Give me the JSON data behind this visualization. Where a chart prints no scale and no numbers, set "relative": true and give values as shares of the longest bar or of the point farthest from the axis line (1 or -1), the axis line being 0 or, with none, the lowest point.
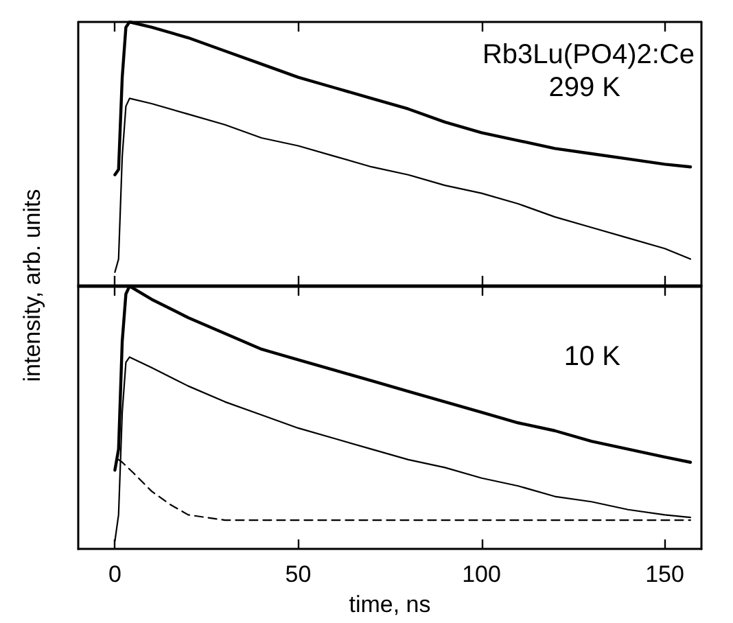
{
  "chart_data": [
    {
      "type": "line",
      "relative": true,
      "xlim": [
        -10,
        160
      ],
      "xticks": [
        0,
        50,
        100,
        150
      ],
      "tick_labels": false,
      "grid": false,
      "marker": "none",
      "annotations": [
        "Rb3Lu(PO4)2:Ce",
        "299 K"
      ],
      "x": [
        0,
        1,
        2,
        3,
        4,
        10,
        20,
        30,
        40,
        50,
        60,
        70,
        80,
        90,
        100,
        110,
        120,
        130,
        140,
        150,
        157
      ],
      "series": [
        {
          "color": "#000000",
          "values": [
            0.42,
            0.44,
            0.79,
            0.98,
            1,
            0.98,
            0.94,
            0.89,
            0.84,
            0.79,
            0.75,
            0.71,
            0.67,
            0.62,
            0.58,
            0.55,
            0.52,
            0.5,
            0.48,
            0.46,
            0.45
          ]
        },
        {
          "color": "#000000",
          "values": [
            0.05,
            0.1,
            0.49,
            0.68,
            0.71,
            0.69,
            0.65,
            0.61,
            0.56,
            0.53,
            0.49,
            0.45,
            0.42,
            0.38,
            0.35,
            0.31,
            0.26,
            0.22,
            0.18,
            0.14,
            0.1
          ]
        }
      ]
    },
    {
      "type": "line",
      "relative": true,
      "xlim": [
        -10,
        160
      ],
      "xticks": [
        0,
        50,
        100,
        150
      ],
      "tick_labels": "x",
      "grid": false,
      "marker": "none",
      "xlabel": "time, ns",
      "ylabel": "intensity, arb. units",
      "annotations": [
        "10 K"
      ],
      "x": [
        0,
        1,
        2,
        3,
        4,
        10,
        20,
        30,
        40,
        50,
        60,
        70,
        80,
        90,
        100,
        110,
        120,
        130,
        140,
        150,
        157
      ],
      "series": [
        {
          "color": "#000000",
          "values": [
            0.3,
            0.38,
            0.79,
            0.97,
            1,
            0.95,
            0.88,
            0.82,
            0.76,
            0.72,
            0.68,
            0.64,
            0.6,
            0.56,
            0.52,
            0.48,
            0.45,
            0.41,
            0.38,
            0.35,
            0.33
          ]
        },
        {
          "color": "#000000",
          "values": [
            0.03,
            0.13,
            0.52,
            0.71,
            0.73,
            0.69,
            0.62,
            0.56,
            0.51,
            0.46,
            0.42,
            0.38,
            0.34,
            0.31,
            0.27,
            0.24,
            0.2,
            0.18,
            0.15,
            0.13,
            0.12
          ]
        },
        {
          "color": "#000000",
          "line_style": "dashed",
          "x": [
            1,
            2,
            5,
            10,
            15,
            20,
            30,
            50,
            70,
            100,
            130,
            157
          ],
          "values": [
            0.34,
            0.33,
            0.29,
            0.22,
            0.17,
            0.13,
            0.11,
            0.11,
            0.11,
            0.11,
            0.11,
            0.11
          ]
        }
      ]
    }
  ]
}
